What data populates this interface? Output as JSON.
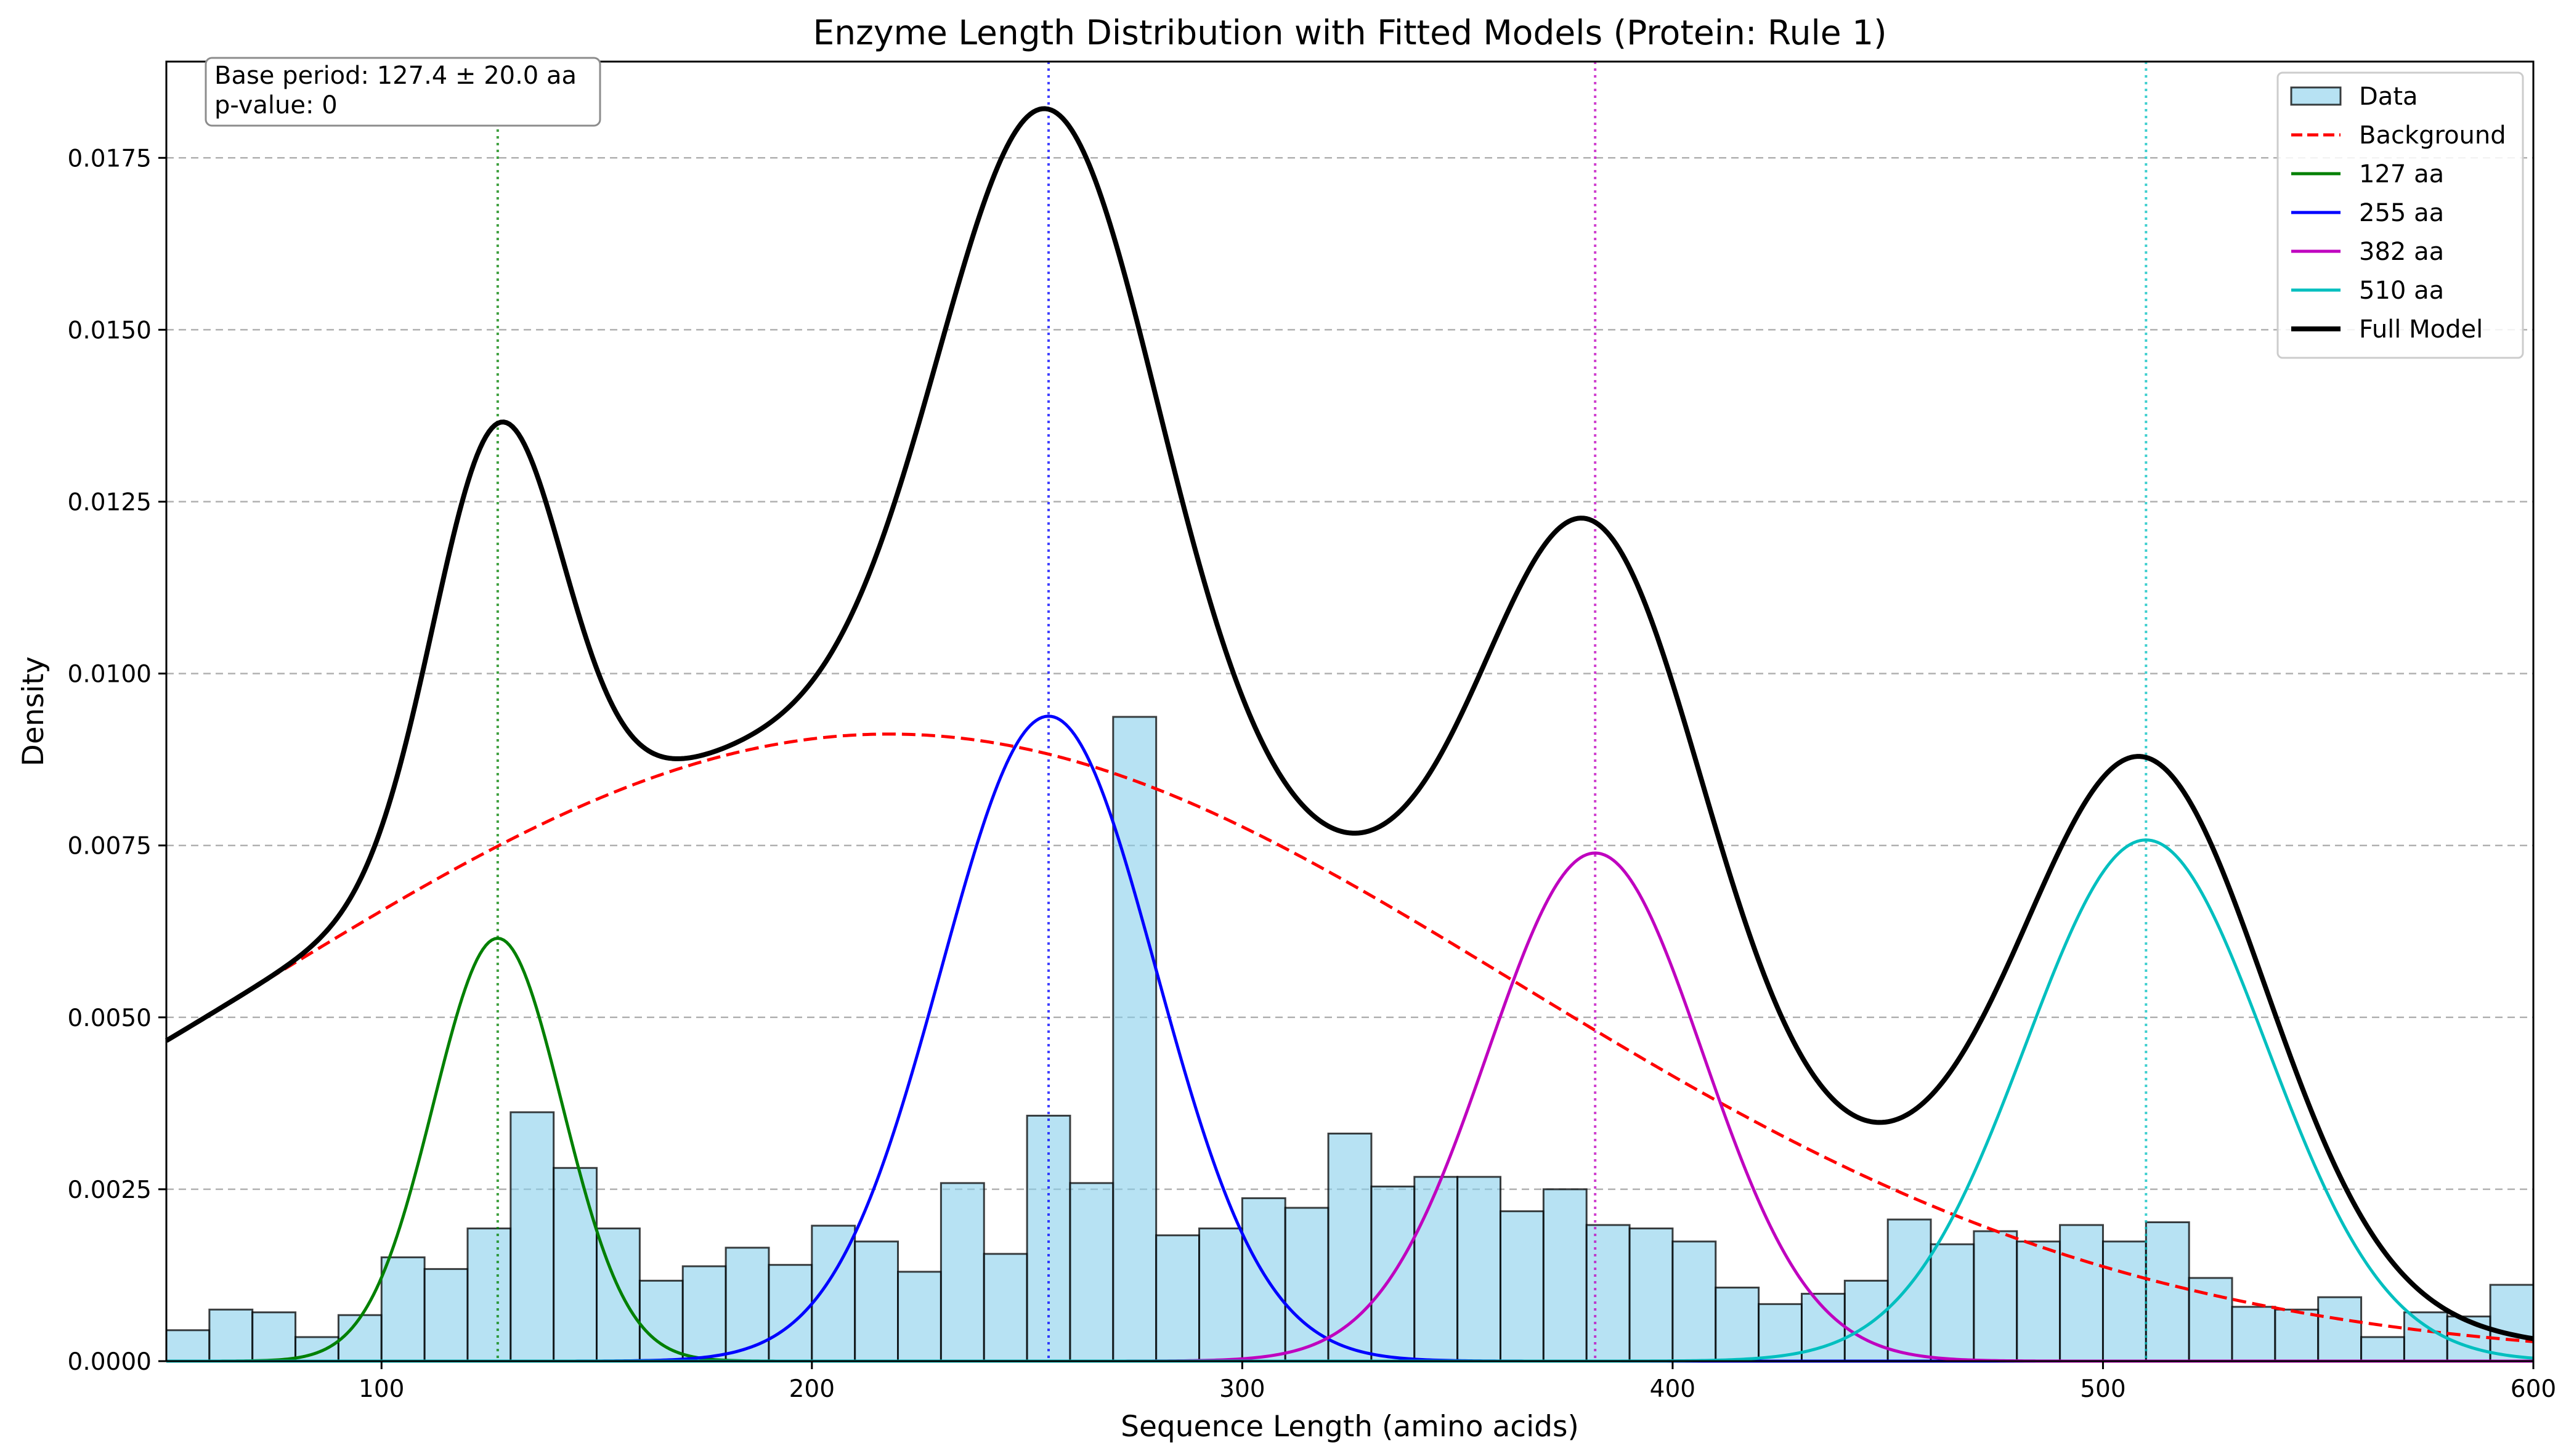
{
  "chart_data": {
    "type": "bar",
    "title": "Enzyme Length Distribution with Fitted Models (Protein: Rule 1)",
    "xlabel": "Sequence Length (amino acids)",
    "ylabel": "Density",
    "xlim": [
      50,
      600
    ],
    "ylim": [
      0,
      0.0189
    ],
    "xticks": [
      100,
      200,
      300,
      400,
      500,
      600
    ],
    "yticks": [
      0.0,
      0.0025,
      0.005,
      0.0075,
      0.01,
      0.0125,
      0.015,
      0.0175
    ],
    "ytick_labels": [
      "0.0000",
      "0.0025",
      "0.0050",
      "0.0075",
      "0.0100",
      "0.0125",
      "0.0150",
      "0.0175"
    ],
    "grid": "y-dashed",
    "legend_position": "top-right",
    "annotation": [
      "Base period: 127.4 ± 20.0 aa",
      "p-value: 0"
    ],
    "histogram": {
      "name": "Data",
      "color": "#87CEEB",
      "bin_start": 50,
      "bin_width": 10,
      "values": [
        0.00045,
        0.00075,
        0.00071,
        0.00035,
        0.00067,
        0.00151,
        0.00134,
        0.00193,
        0.00362,
        0.00281,
        0.00193,
        0.00117,
        0.00138,
        0.00165,
        0.0014,
        0.00197,
        0.00174,
        0.0013,
        0.00259,
        0.00156,
        0.00357,
        0.00259,
        0.00937,
        0.00183,
        0.00193,
        0.00237,
        0.00223,
        0.00331,
        0.00254,
        0.00268,
        0.00268,
        0.00218,
        0.0025,
        0.00198,
        0.00193,
        0.00174,
        0.00107,
        0.00083,
        0.00098,
        0.00117,
        0.00206,
        0.0017,
        0.00189,
        0.00174,
        0.00198,
        0.00174,
        0.00202,
        0.00121,
        0.00079,
        0.00075,
        0.00093,
        0.00035,
        0.00071,
        0.00065,
        0.00111
      ]
    },
    "series": [
      {
        "name": "Background",
        "color": "#FF0000",
        "style": "dashed",
        "model": {
          "kind": "gaussian",
          "mu": 218,
          "sigma": 145,
          "amp": 0.00912
        }
      },
      {
        "name": "127 aa",
        "color": "#008000",
        "style": "solid",
        "model": {
          "kind": "gaussian",
          "mu": 127,
          "sigma": 15,
          "amp": 0.00615
        }
      },
      {
        "name": "255 aa",
        "color": "#0000FF",
        "style": "solid",
        "model": {
          "kind": "gaussian",
          "mu": 255,
          "sigma": 25,
          "amp": 0.00938
        }
      },
      {
        "name": "382 aa",
        "color": "#BF00BF",
        "style": "solid",
        "model": {
          "kind": "gaussian",
          "mu": 382,
          "sigma": 25,
          "amp": 0.00739
        }
      },
      {
        "name": "510 aa",
        "color": "#00BFBF",
        "style": "solid",
        "model": {
          "kind": "gaussian",
          "mu": 510,
          "sigma": 28,
          "amp": 0.00758
        }
      },
      {
        "name": "Full Model",
        "color": "#000000",
        "style": "solid",
        "model": {
          "kind": "sum"
        }
      }
    ],
    "period_markers": [
      {
        "x": 127,
        "color": "#008000"
      },
      {
        "x": 255,
        "color": "#0000FF"
      },
      {
        "x": 382,
        "color": "#BF00BF"
      },
      {
        "x": 510,
        "color": "#00BFBF"
      }
    ]
  }
}
